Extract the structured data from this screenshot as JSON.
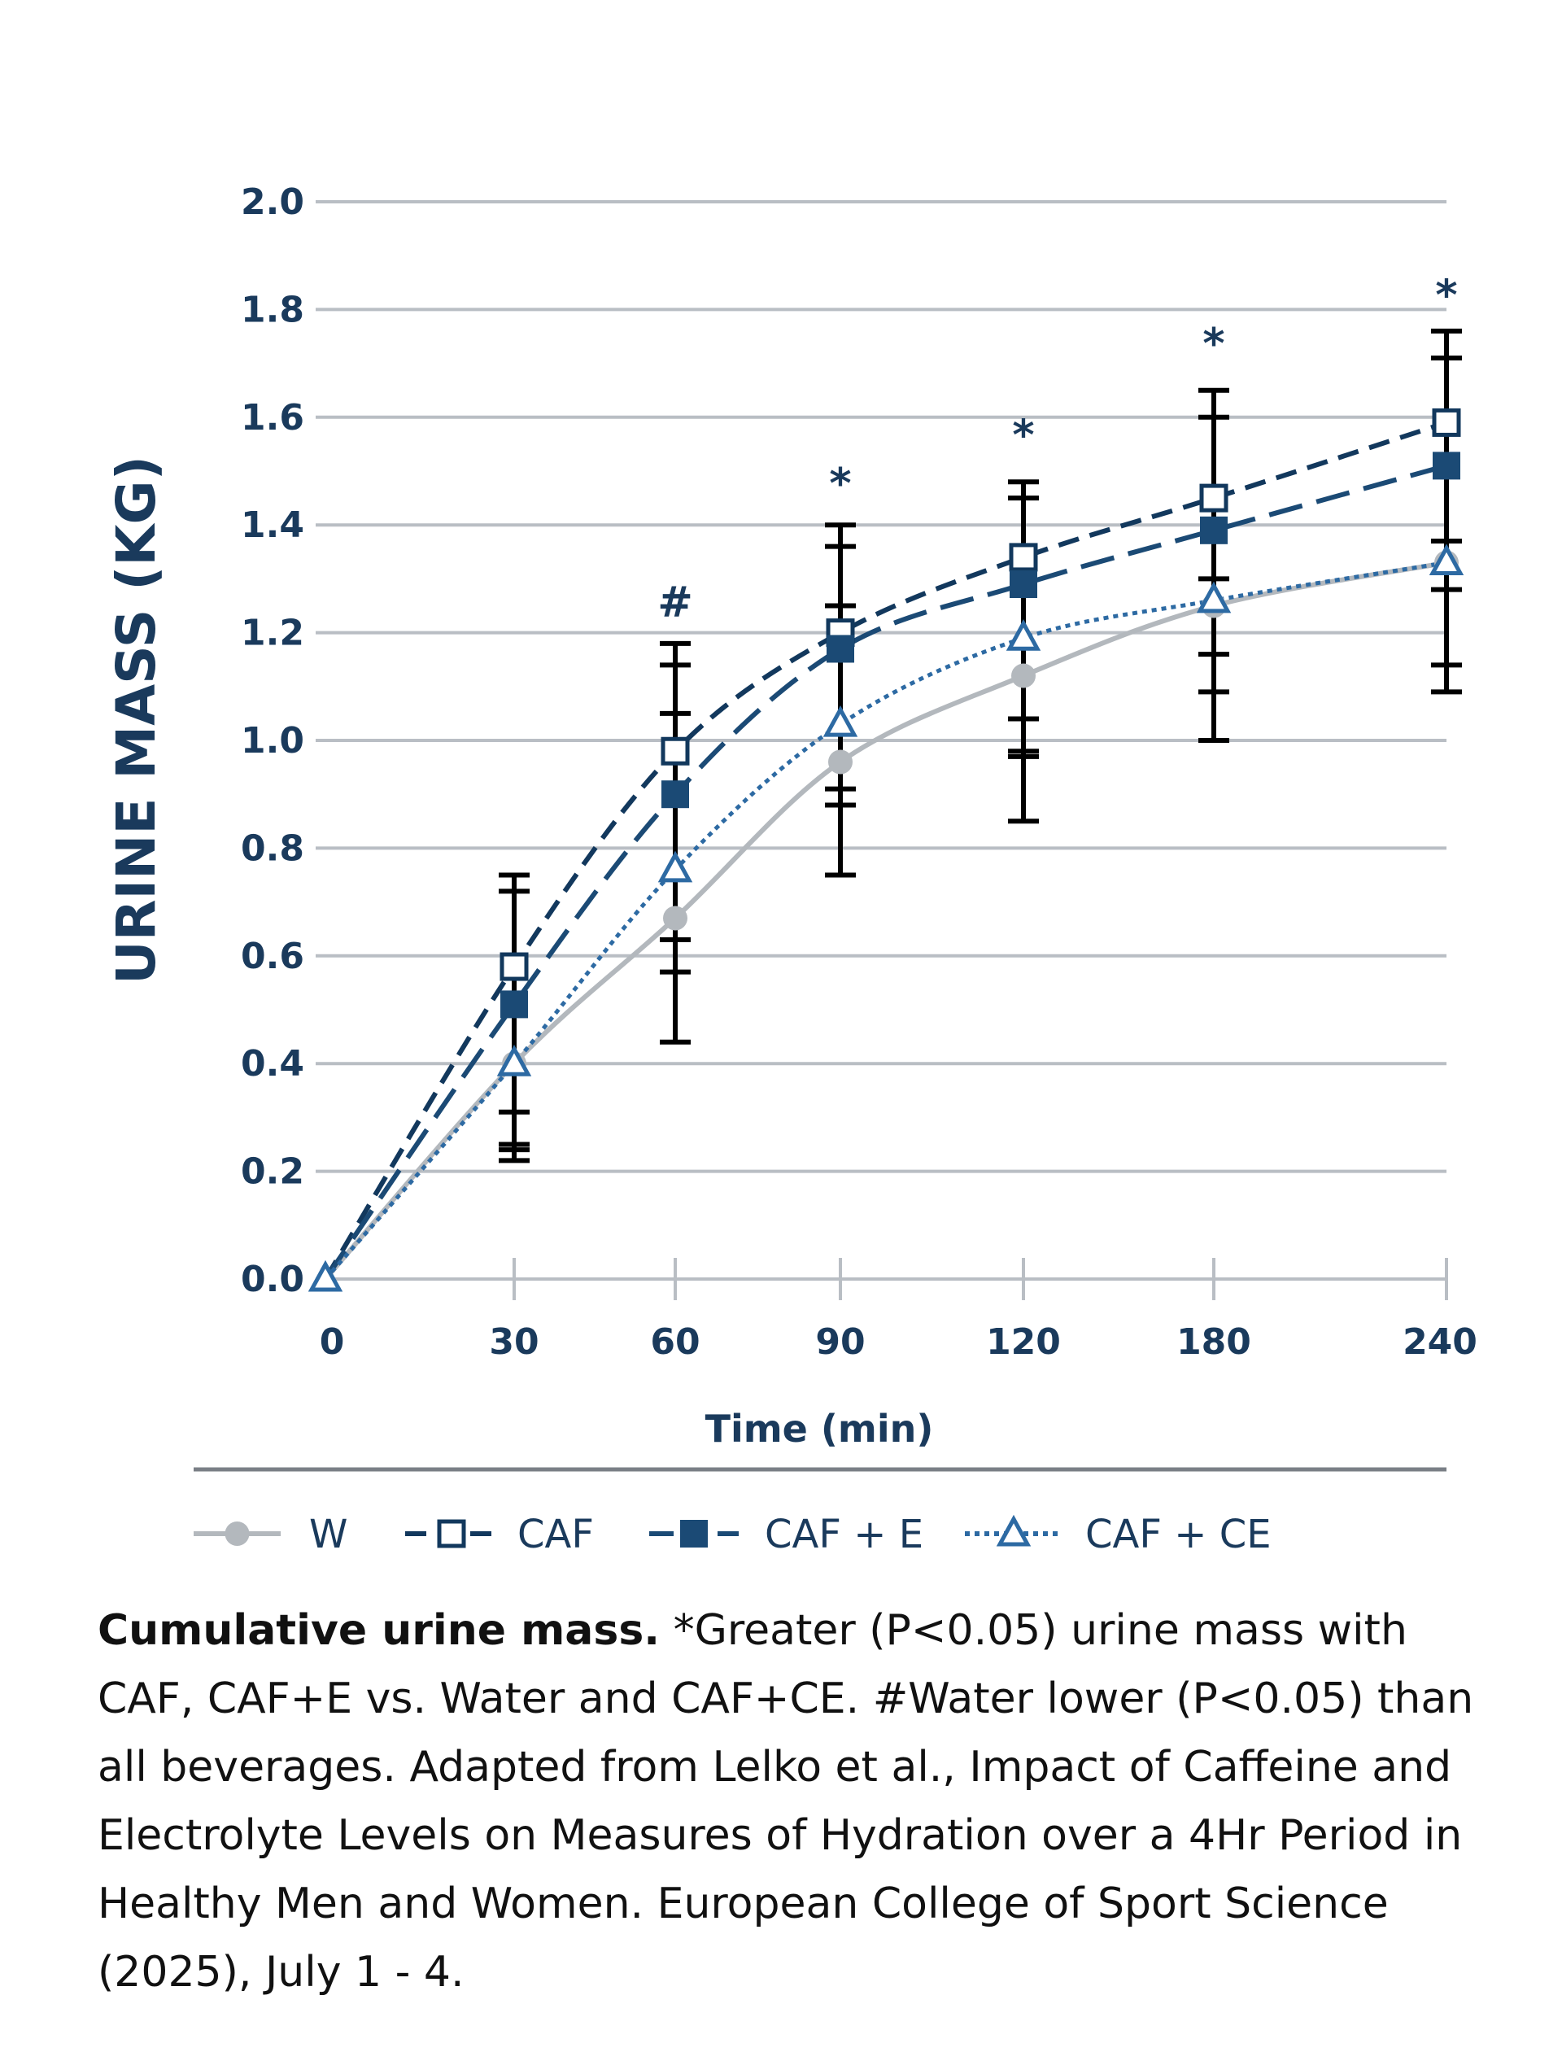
{
  "chart_data": {
    "type": "line",
    "ylabel": "URINE MASS (KG)",
    "xlabel": "Time (min)",
    "ylim": [
      0.0,
      2.0
    ],
    "yticks": [
      "0.0",
      "0.2",
      "0.4",
      "0.6",
      "0.8",
      "1.0",
      "1.2",
      "1.4",
      "1.6",
      "1.8",
      "2.0"
    ],
    "x": [
      "0",
      "30",
      "60",
      "90",
      "120",
      "180",
      "240"
    ],
    "series": [
      {
        "name": "W",
        "color": "#b3b8bd",
        "style": "solid",
        "marker": "filled-circle",
        "values": [
          0.0,
          0.4,
          0.67,
          0.96,
          1.12,
          1.25,
          1.33
        ]
      },
      {
        "name": "CAF",
        "color": "#12385d",
        "style": "dashed",
        "marker": "open-square",
        "values": [
          0.0,
          0.58,
          0.98,
          1.2,
          1.34,
          1.45,
          1.59
        ]
      },
      {
        "name": "CAF + E",
        "color": "#1b4a75",
        "style": "long-dashed",
        "marker": "filled-square",
        "values": [
          0.0,
          0.51,
          0.9,
          1.17,
          1.29,
          1.39,
          1.51
        ]
      },
      {
        "name": "CAF + CE",
        "color": "#2d6aa3",
        "style": "dotted",
        "marker": "open-triangle",
        "values": [
          0.0,
          0.4,
          0.76,
          1.03,
          1.19,
          1.26,
          1.33
        ]
      }
    ],
    "error_bars": [
      {
        "x": "30",
        "caps": [
          0.22,
          0.24,
          0.25,
          0.31,
          0.72,
          0.75
        ]
      },
      {
        "x": "60",
        "caps": [
          0.44,
          0.57,
          0.63,
          1.05,
          1.14,
          1.18
        ]
      },
      {
        "x": "90",
        "caps": [
          0.75,
          0.88,
          0.91,
          1.25,
          1.36,
          1.4
        ]
      },
      {
        "x": "120",
        "caps": [
          0.85,
          0.97,
          0.98,
          1.04,
          1.45,
          1.48
        ]
      },
      {
        "x": "180",
        "caps": [
          1.0,
          1.09,
          1.16,
          1.3,
          1.6,
          1.65
        ]
      },
      {
        "x": "240",
        "caps": [
          1.09,
          1.14,
          1.28,
          1.37,
          1.71,
          1.76
        ]
      }
    ],
    "annotations": [
      {
        "x": "60",
        "text": "#",
        "y": 1.23
      },
      {
        "x": "90",
        "text": "*",
        "y": 1.45
      },
      {
        "x": "120",
        "text": "*",
        "y": 1.54
      },
      {
        "x": "180",
        "text": "*",
        "y": 1.71
      },
      {
        "x": "240",
        "text": "*",
        "y": 1.8
      }
    ],
    "legend": [
      "W",
      "CAF",
      "CAF + E",
      "CAF + CE"
    ],
    "legend_position": "bottom",
    "grid": true
  },
  "caption": {
    "bold": "Cumulative urine mass.",
    "text": " *Greater (P<0.05) urine mass with CAF, CAF+E vs. Water and CAF+CE. #Water lower (P<0.05) than all beverages. Adapted from Lelko et al., Impact of Caffeine and Electrolyte Levels on Measures of Hydration over a 4Hr Period in Healthy Men and Women. European College of Sport Science (2025), July 1 - 4."
  }
}
